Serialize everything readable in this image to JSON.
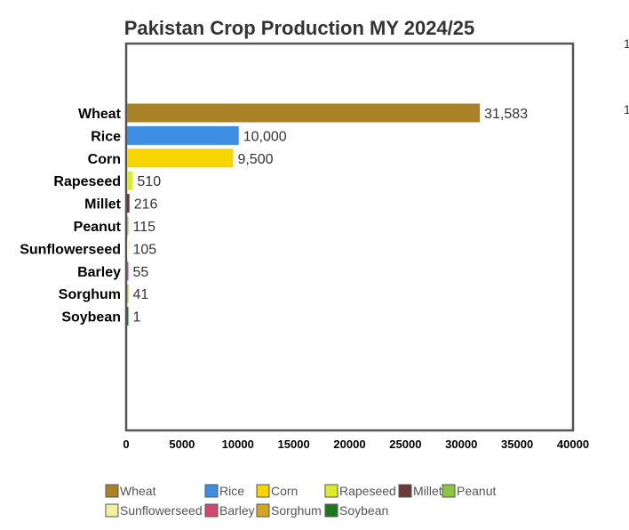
{
  "chart_data": {
    "type": "bar",
    "orientation": "horizontal",
    "title": "Pakistan Crop Production MY 2024/25",
    "xlabel": "",
    "ylabel": "",
    "categories": [
      "Wheat",
      "Rice",
      "Corn",
      "Rapeseed",
      "Millet",
      "Peanut",
      "Sunflowerseed",
      "Barley",
      "Sorghum",
      "Soybean"
    ],
    "values": [
      31583,
      10000,
      9500,
      510,
      216,
      115,
      105,
      55,
      41,
      1
    ],
    "value_labels": [
      "31,583",
      "10,000",
      "9,500",
      "510",
      "216",
      "115",
      "105",
      "55",
      "41",
      "1"
    ],
    "colors": [
      "#A88224",
      "#3D8FE3",
      "#F7D600",
      "#DDEB28",
      "#6B3A35",
      "#8CC63F",
      "#F4F0A0",
      "#D6456E",
      "#D4A520",
      "#1A7A1A"
    ],
    "xlim": [
      0,
      40000
    ],
    "xticks": [
      0,
      5000,
      10000,
      15000,
      20000,
      25000,
      30000,
      35000,
      40000
    ],
    "grid": false,
    "legend_position": "bottom"
  }
}
